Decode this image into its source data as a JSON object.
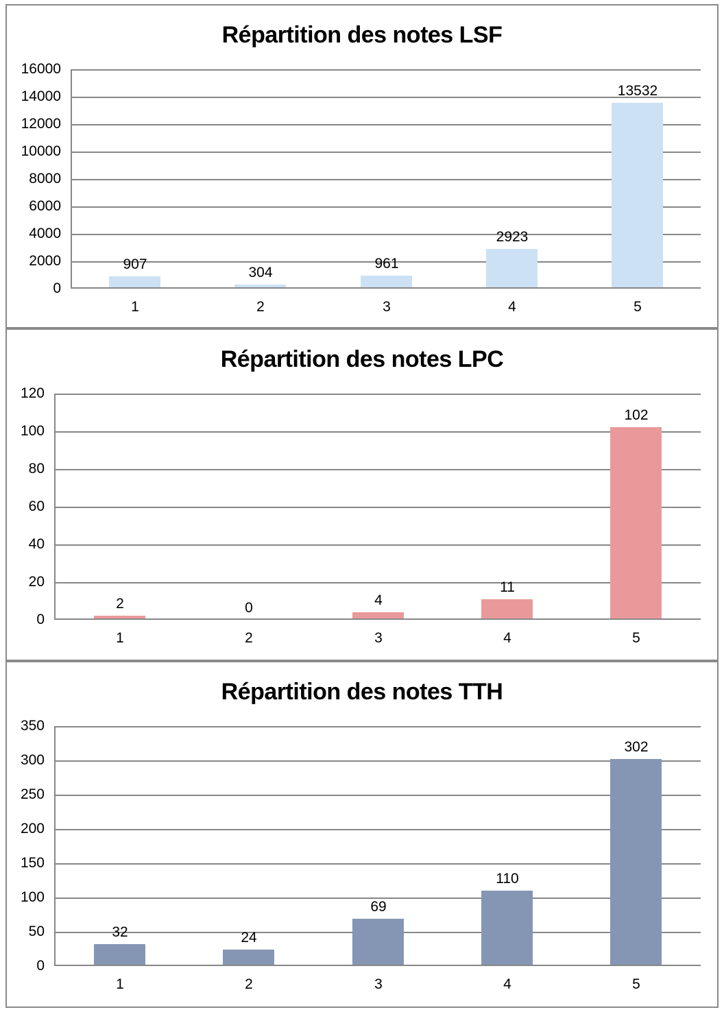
{
  "page": {
    "background": "#ffffff",
    "panel_border_color": "#8a8a8a",
    "grid_color": "#878787",
    "text_color": "#000000"
  },
  "chart_data": [
    {
      "type": "bar",
      "title": "Répartition des notes LSF",
      "categories": [
        "1",
        "2",
        "3",
        "4",
        "5"
      ],
      "values": [
        907,
        304,
        961,
        2923,
        13532
      ],
      "xlabel": "",
      "ylabel": "",
      "ylim": [
        0,
        16000
      ],
      "ytick_step": 2000,
      "grid": true,
      "legend": "none",
      "bar_color": "#cce1f4"
    },
    {
      "type": "bar",
      "title": "Répartition des notes LPC",
      "categories": [
        "1",
        "2",
        "3",
        "4",
        "5"
      ],
      "values": [
        2,
        0,
        4,
        11,
        102
      ],
      "xlabel": "",
      "ylabel": "",
      "ylim": [
        0,
        120
      ],
      "ytick_step": 20,
      "grid": true,
      "legend": "none",
      "bar_color": "#ea999a"
    },
    {
      "type": "bar",
      "title": "Répartition des notes TTH",
      "categories": [
        "1",
        "2",
        "3",
        "4",
        "5"
      ],
      "values": [
        32,
        24,
        69,
        110,
        302
      ],
      "xlabel": "",
      "ylabel": "",
      "ylim": [
        0,
        350
      ],
      "ytick_step": 50,
      "grid": true,
      "legend": "none",
      "bar_color": "#8595b4"
    }
  ]
}
